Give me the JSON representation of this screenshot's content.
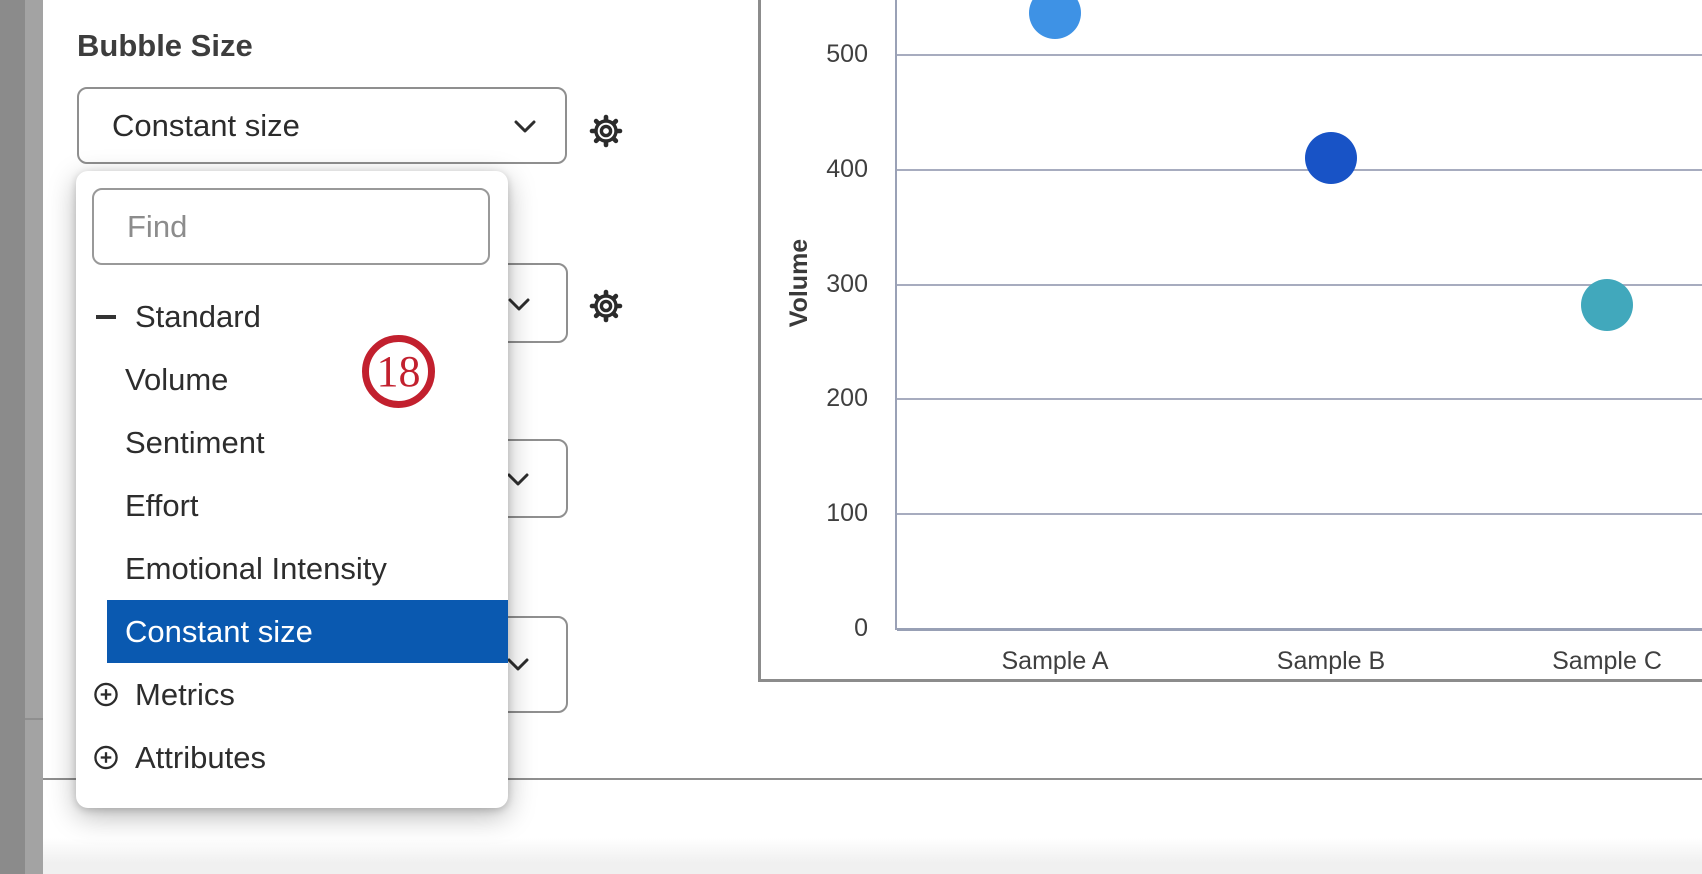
{
  "bubbleSize": {
    "label": "Bubble Size",
    "selected": "Constant size",
    "findPlaceholder": "Find",
    "options": [
      {
        "label": "Standard",
        "kind": "group",
        "toggle": "minus",
        "selected": false
      },
      {
        "label": "Volume",
        "kind": "item",
        "toggle": "none",
        "selected": false
      },
      {
        "label": "Sentiment",
        "kind": "item",
        "toggle": "none",
        "selected": false
      },
      {
        "label": "Effort",
        "kind": "item",
        "toggle": "none",
        "selected": false
      },
      {
        "label": "Emotional Intensity",
        "kind": "item",
        "toggle": "none",
        "selected": false
      },
      {
        "label": "Constant size",
        "kind": "item",
        "toggle": "none",
        "selected": true
      },
      {
        "label": "Metrics",
        "kind": "group",
        "toggle": "plus",
        "selected": false
      },
      {
        "label": "Attributes",
        "kind": "group",
        "toggle": "plus",
        "selected": false
      }
    ]
  },
  "annotation": {
    "value": "18",
    "color": "#C2202E"
  },
  "chart_data": {
    "type": "scatter",
    "subtype": "bubble",
    "categories": [
      "Sample A",
      "Sample B",
      "Sample C"
    ],
    "series": [
      {
        "name": "Volume",
        "values": [
          537,
          410,
          282
        ]
      }
    ],
    "bubble_colors": [
      "#3E92E5",
      "#1853C6",
      "#41A8BC"
    ],
    "title": "",
    "xlabel": "",
    "ylabel": "Volume",
    "yticks": [
      0,
      100,
      200,
      300,
      400,
      500
    ],
    "ylim": [
      0,
      560
    ],
    "grid": true,
    "legend": false
  },
  "colors": {
    "highlight": "#0A59B0",
    "badge": "#C2202E",
    "gridline": "#A7ACBF",
    "widgetBorder": "#8C8C8C"
  }
}
